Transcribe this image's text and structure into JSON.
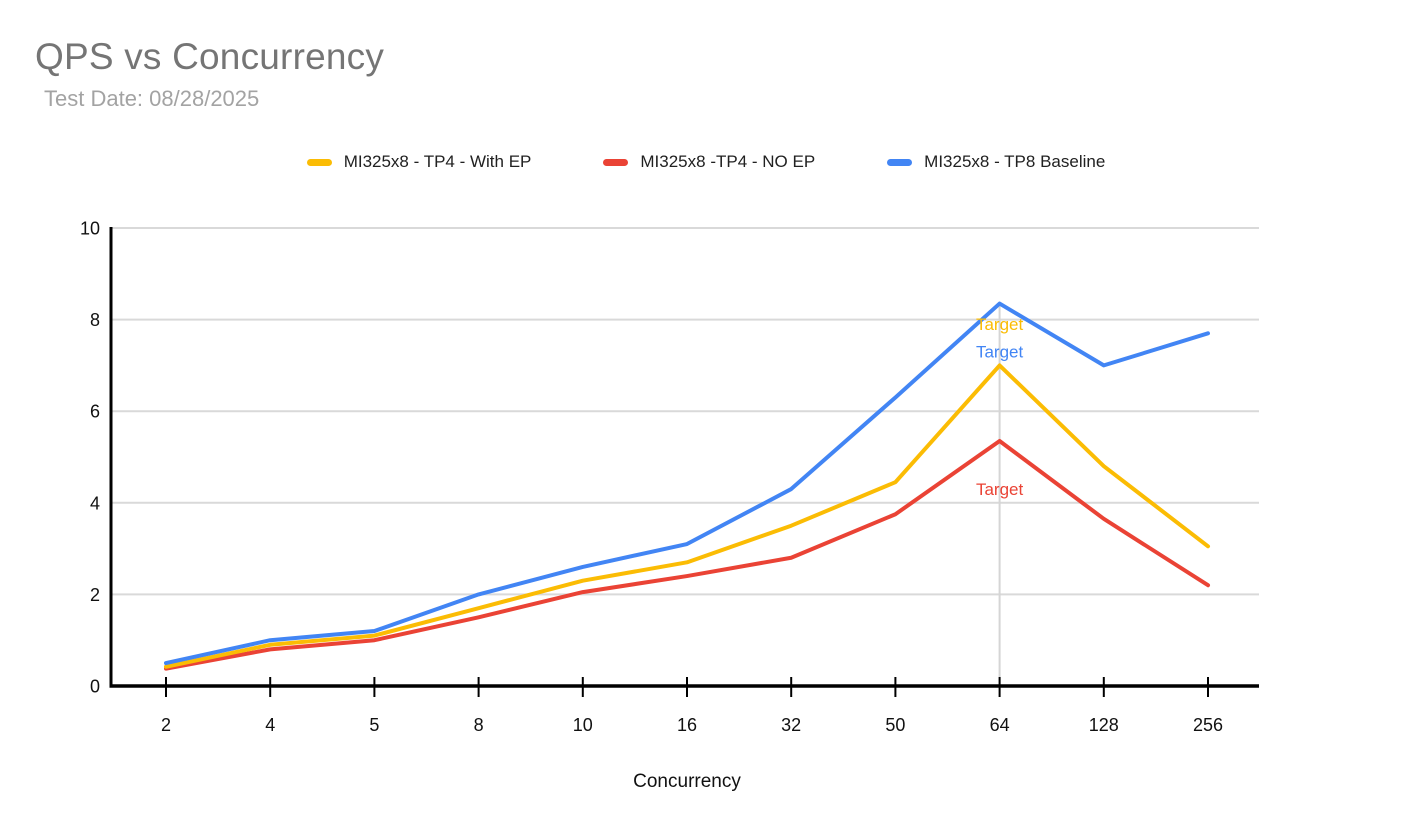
{
  "header": {
    "title": "QPS vs Concurrency",
    "subtitle": "Test Date: 08/28/2025"
  },
  "legend": [
    {
      "label": "MI325x8 - TP4 - With EP",
      "color": "#FBBC04"
    },
    {
      "label": "MI325x8 -TP4 - NO EP",
      "color": "#EA4335"
    },
    {
      "label": "MI325x8 - TP8 Baseline",
      "color": "#4285F4"
    }
  ],
  "chart_data": {
    "type": "line",
    "title": "QPS vs Concurrency",
    "subtitle": "Test Date: 08/28/2025",
    "xlabel": "Concurrency",
    "ylabel": "",
    "ylim": [
      0,
      10
    ],
    "yticks": [
      0,
      2,
      4,
      6,
      8,
      10
    ],
    "grid": true,
    "legend_position": "top",
    "categories": [
      "2",
      "4",
      "5",
      "8",
      "10",
      "16",
      "32",
      "50",
      "64",
      "128",
      "256"
    ],
    "series": [
      {
        "name": "MI325x8 - TP4 - With EP",
        "color": "#FBBC04",
        "values": [
          0.42,
          0.9,
          1.1,
          1.7,
          2.3,
          2.7,
          3.5,
          4.45,
          7.0,
          4.8,
          3.05
        ]
      },
      {
        "name": "MI325x8 -TP4 - NO EP",
        "color": "#EA4335",
        "values": [
          0.38,
          0.8,
          1.0,
          1.5,
          2.05,
          2.4,
          2.8,
          3.75,
          5.35,
          3.65,
          2.2
        ]
      },
      {
        "name": "MI325x8 - TP8 Baseline",
        "color": "#4285F4",
        "values": [
          0.5,
          1.0,
          1.2,
          2.0,
          2.6,
          3.1,
          4.3,
          6.3,
          8.35,
          7.0,
          7.7
        ]
      }
    ],
    "annotations": [
      {
        "text": "Target",
        "series": "MI325x8 - TP4 - With EP",
        "color": "#FBBC04",
        "at_category": "64",
        "label_value": 7.9
      },
      {
        "text": "Target",
        "series": "MI325x8 - TP8 Baseline",
        "color": "#4285F4",
        "at_category": "64",
        "label_value": 7.3
      },
      {
        "text": "Target",
        "series": "MI325x8 -TP4 - NO EP",
        "color": "#EA4335",
        "at_category": "64",
        "label_value": 4.3
      }
    ],
    "colors": {
      "gridline": "#d9d9d9",
      "axis": "#000000",
      "annotation_line": "#d5d5d5",
      "tick_label": "#111111"
    }
  }
}
